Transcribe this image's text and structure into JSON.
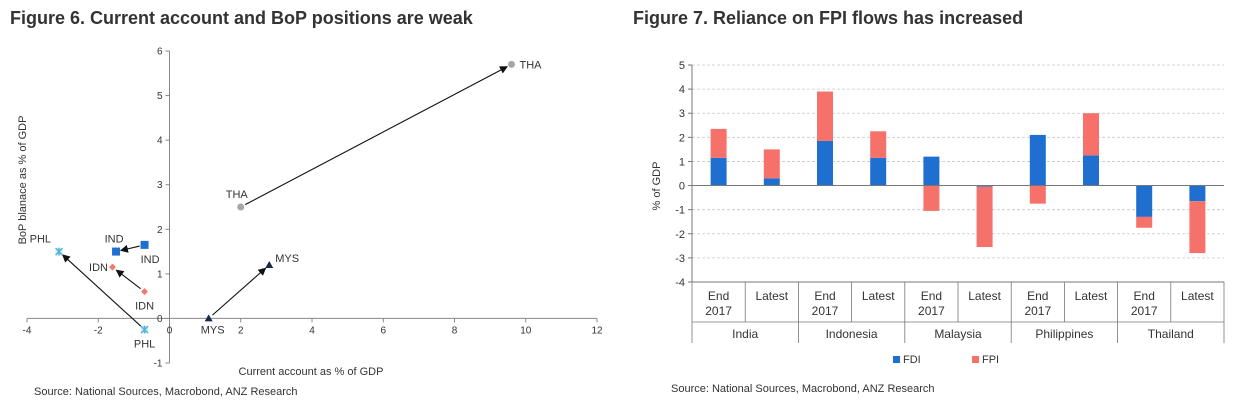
{
  "figure6": {
    "title": "Figure 6. Current account and BoP positions are weak",
    "source": "Source: National Sources, Macrobond, ANZ Research",
    "chart_data": {
      "type": "scatter",
      "xlabel": "Current account as % of GDP",
      "ylabel": "BoP blanace as % of GDP",
      "xlim": [
        -4,
        12
      ],
      "ylim": [
        -1,
        6
      ],
      "xticks": [
        -4,
        -2,
        0,
        2,
        4,
        6,
        8,
        10,
        12
      ],
      "yticks": [
        -1,
        0,
        1,
        2,
        3,
        4,
        5,
        6
      ],
      "xtick_labels": [
        "-4",
        "-2",
        "0",
        "2",
        "4",
        "6",
        "8",
        "10",
        "12"
      ],
      "ytick_labels": [
        "-1",
        "0",
        "1",
        "2",
        "3",
        "4",
        "5",
        "6"
      ],
      "series": [
        {
          "name": "PHL",
          "marker": "asterisk",
          "color": "#4fb3d9",
          "points": [
            {
              "x": -3.1,
              "y": 1.5,
              "label": "PHL"
            },
            {
              "x": -0.7,
              "y": -0.25,
              "label": "PHL"
            }
          ]
        },
        {
          "name": "IND",
          "marker": "square",
          "color": "#1f6fd1",
          "points": [
            {
              "x": -1.5,
              "y": 1.5,
              "label": "IND"
            },
            {
              "x": -0.7,
              "y": 1.65,
              "label": "IND"
            }
          ]
        },
        {
          "name": "IDN",
          "marker": "diamond",
          "color": "#f07a6e",
          "points": [
            {
              "x": -1.6,
              "y": 1.15,
              "label": "IDN"
            },
            {
              "x": -0.7,
              "y": 0.6,
              "label": "IDN"
            }
          ]
        },
        {
          "name": "THA",
          "marker": "circle",
          "color": "#a6a6a6",
          "points": [
            {
              "x": 9.6,
              "y": 5.7,
              "label": "THA"
            },
            {
              "x": 2.0,
              "y": 2.5,
              "label": "THA"
            }
          ]
        },
        {
          "name": "MYS",
          "marker": "triangle",
          "color": "#1a2a4a",
          "points": [
            {
              "x": 2.8,
              "y": 1.2,
              "label": "MYS"
            },
            {
              "x": 1.1,
              "y": 0.0,
              "label": "MYS"
            }
          ]
        }
      ]
    }
  },
  "figure7": {
    "title": "Figure 7. Reliance on FPI flows has increased",
    "source": "Source: National Sources, Macrobond, ANZ Research",
    "chart_data": {
      "type": "bar",
      "stacked": true,
      "ylabel": "% of GDP",
      "ylim": [
        -4,
        5
      ],
      "yticks": [
        -4,
        -3,
        -2,
        -1,
        0,
        1,
        2,
        3,
        4,
        5
      ],
      "ytick_labels": [
        "-4",
        "-3",
        "-2",
        "-1",
        "0",
        "1",
        "2",
        "3",
        "4",
        "5"
      ],
      "grid": true,
      "legend_position": "bottom",
      "groups": [
        "India",
        "Indonesia",
        "Malaysia",
        "Philippines",
        "Thailand"
      ],
      "categories": [
        {
          "line1": "End",
          "line2": "2017"
        },
        {
          "line1": "Latest",
          "line2": ""
        },
        {
          "line1": "End",
          "line2": "2017"
        },
        {
          "line1": "Latest",
          "line2": ""
        },
        {
          "line1": "End",
          "line2": "2017"
        },
        {
          "line1": "Latest",
          "line2": ""
        },
        {
          "line1": "End",
          "line2": "2017"
        },
        {
          "line1": "Latest",
          "line2": ""
        },
        {
          "line1": "End",
          "line2": "2017"
        },
        {
          "line1": "Latest",
          "line2": ""
        }
      ],
      "series": [
        {
          "name": "FDI",
          "color": "#1f6fd1",
          "values": [
            1.15,
            0.3,
            1.85,
            1.15,
            1.2,
            -0.05,
            2.1,
            1.25,
            -1.3,
            -0.65
          ]
        },
        {
          "name": "FPI",
          "color": "#f5716a",
          "values": [
            1.2,
            1.2,
            2.05,
            1.1,
            -1.05,
            -2.5,
            -0.75,
            1.75,
            -0.45,
            -2.15
          ]
        }
      ]
    }
  }
}
